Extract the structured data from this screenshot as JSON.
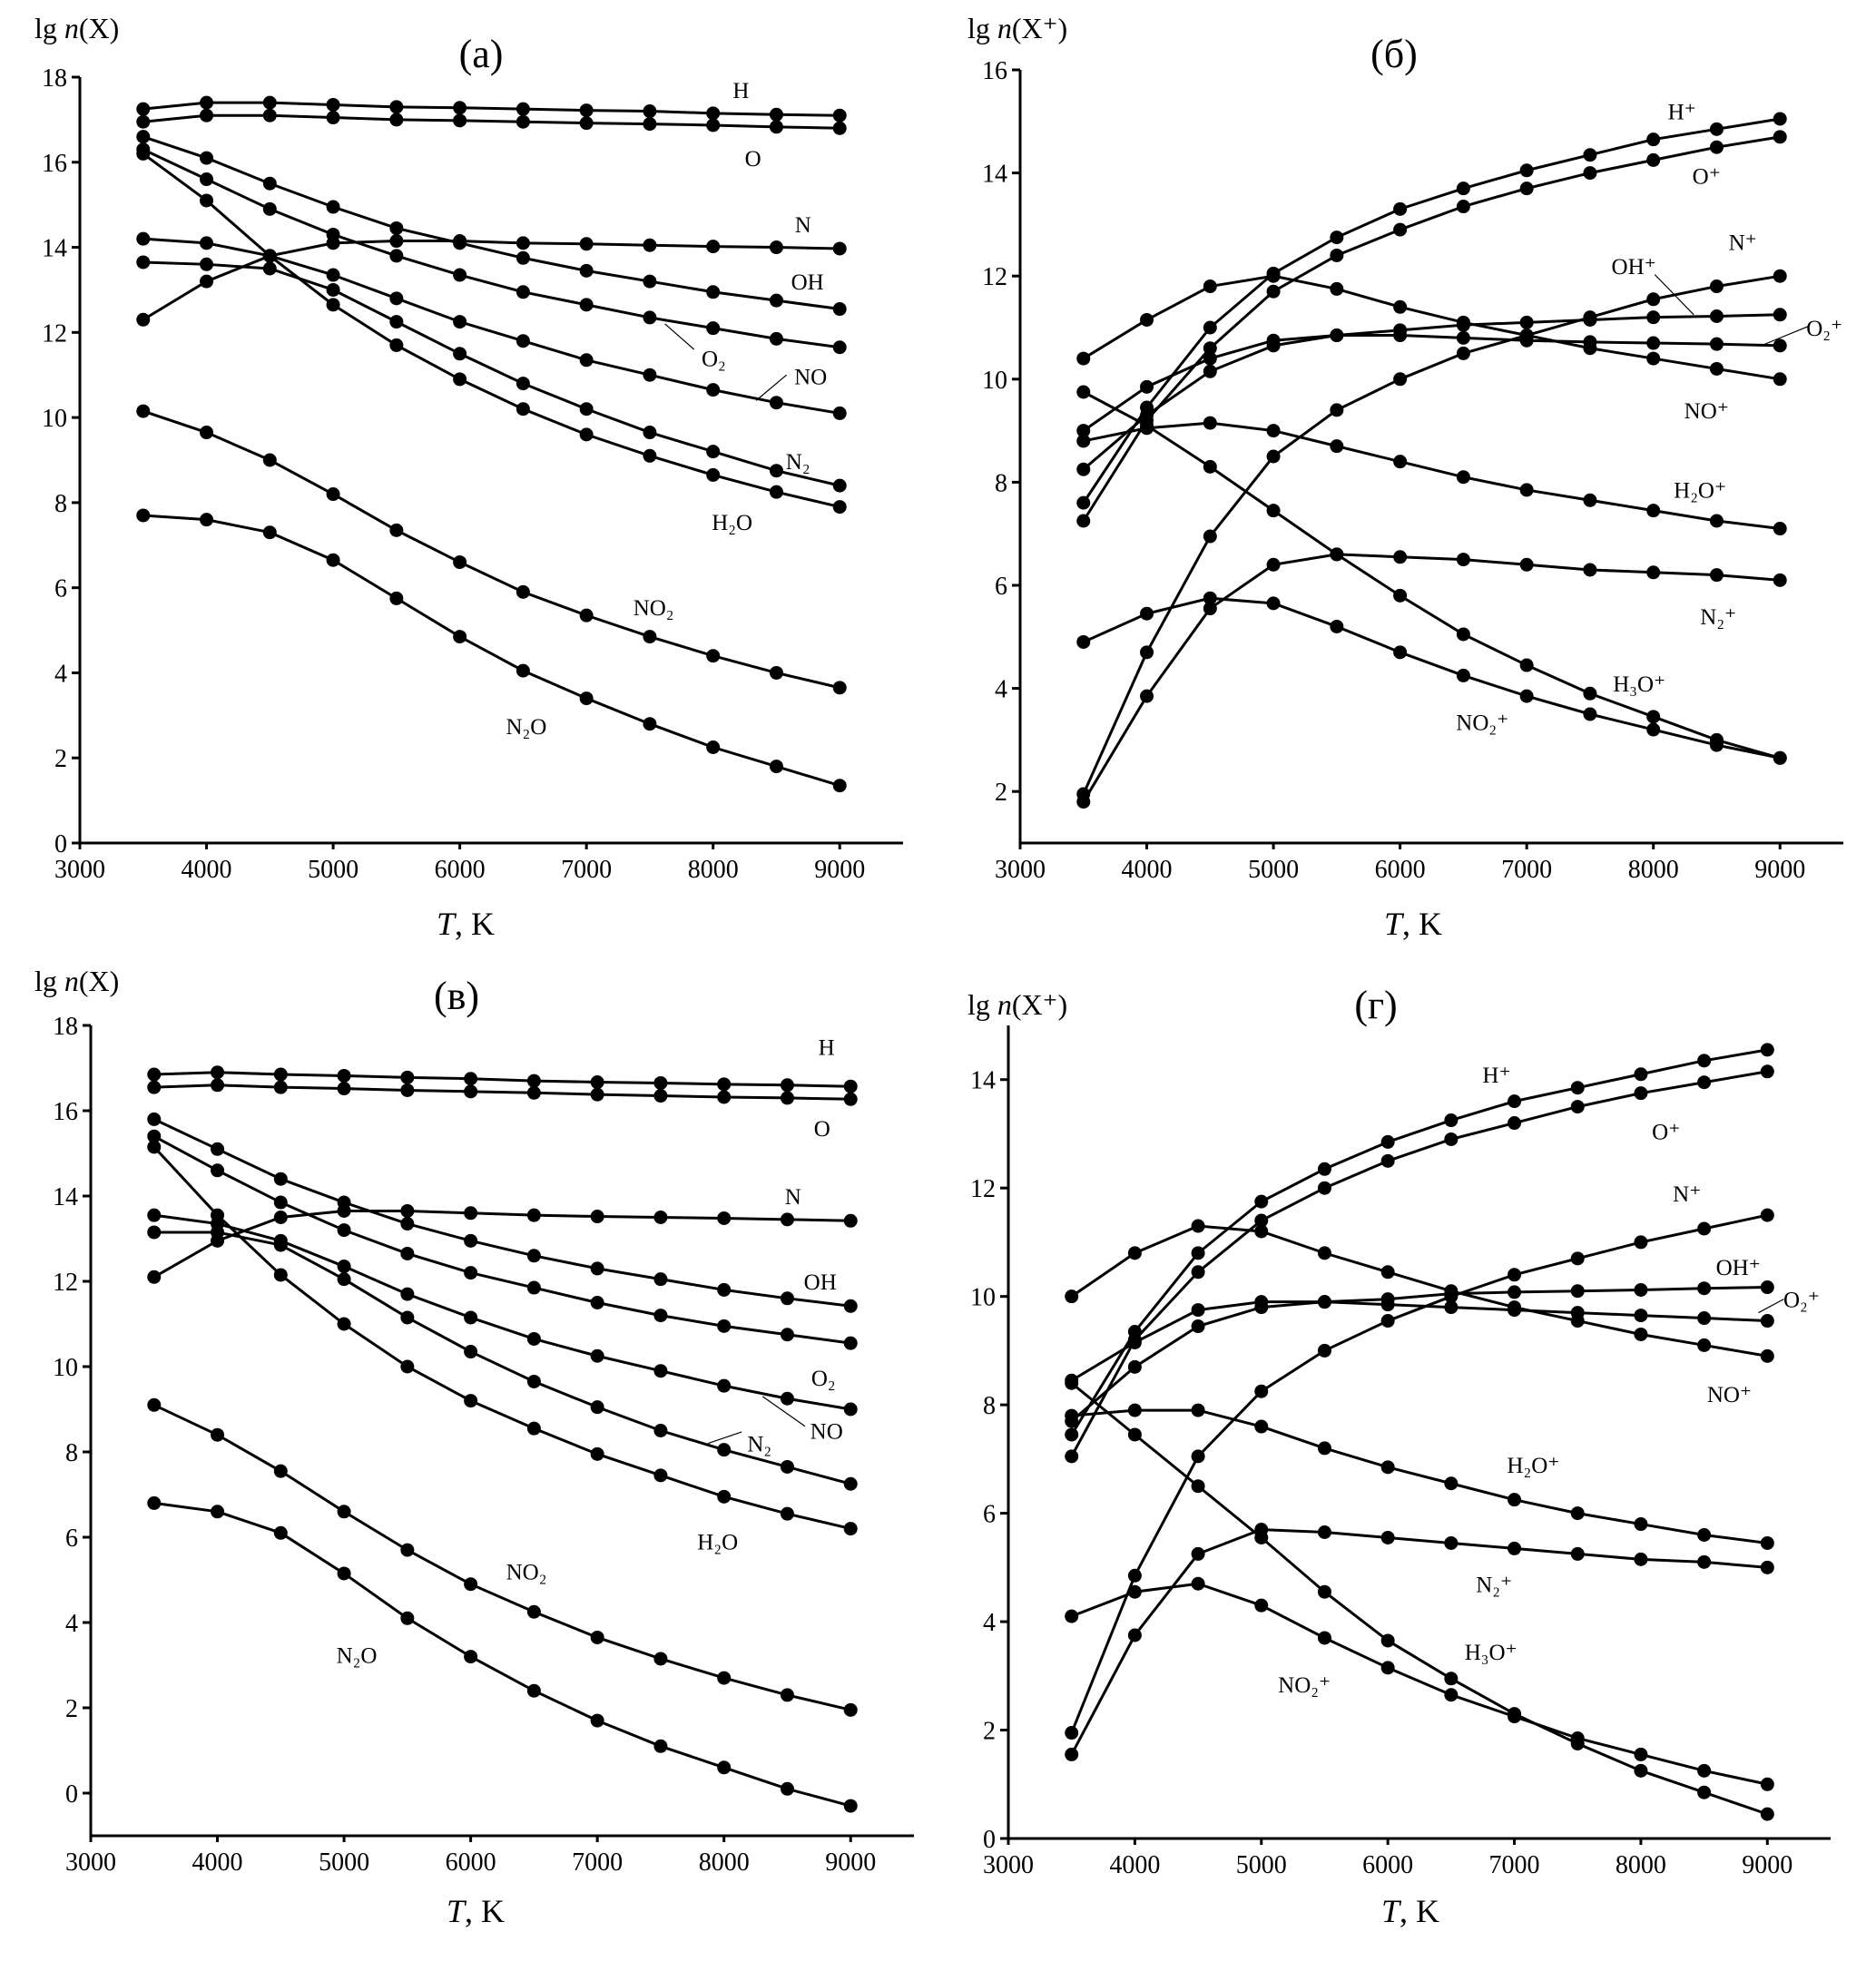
{
  "chart_data": [
    {
      "type": "line",
      "title": "(а)",
      "ylabel": {
        "prefix": "lg ",
        "var": "n",
        "arg": "(X)"
      },
      "xlabel": {
        "var": "T",
        "unit": ", K"
      },
      "xlim": [
        3000,
        9500
      ],
      "ylim": [
        0,
        18
      ],
      "xticks": [
        3000,
        4000,
        5000,
        6000,
        7000,
        8000,
        9000
      ],
      "yticks": [
        0,
        2,
        4,
        6,
        8,
        10,
        12,
        14,
        16,
        18
      ],
      "x": [
        3500,
        4000,
        4500,
        5000,
        5500,
        6000,
        6500,
        7000,
        7500,
        8000,
        8500,
        9000
      ],
      "series": [
        {
          "name": "H",
          "values": [
            17.25,
            17.4,
            17.4,
            17.35,
            17.3,
            17.28,
            17.25,
            17.22,
            17.2,
            17.15,
            17.12,
            17.1
          ]
        },
        {
          "name": "O",
          "values": [
            16.95,
            17.1,
            17.1,
            17.05,
            17.0,
            16.98,
            16.95,
            16.92,
            16.9,
            16.87,
            16.83,
            16.8
          ]
        },
        {
          "name": "N",
          "values": [
            12.3,
            13.2,
            13.8,
            14.1,
            14.15,
            14.15,
            14.1,
            14.08,
            14.05,
            14.02,
            14.0,
            13.97
          ]
        },
        {
          "name": "OH",
          "values": [
            16.6,
            16.1,
            15.5,
            14.95,
            14.45,
            14.1,
            13.75,
            13.45,
            13.2,
            12.95,
            12.75,
            12.55
          ]
        },
        {
          "name": "O₂",
          "values": [
            16.3,
            15.6,
            14.9,
            14.3,
            13.8,
            13.35,
            12.95,
            12.65,
            12.35,
            12.1,
            11.85,
            11.65
          ]
        },
        {
          "name": "NO",
          "values": [
            14.2,
            14.1,
            13.8,
            13.35,
            12.8,
            12.25,
            11.8,
            11.35,
            11.0,
            10.65,
            10.35,
            10.1
          ]
        },
        {
          "name": "N₂",
          "values": [
            13.65,
            13.6,
            13.5,
            13.0,
            12.25,
            11.5,
            10.8,
            10.2,
            9.65,
            9.2,
            8.75,
            8.4
          ]
        },
        {
          "name": "H₂O",
          "values": [
            16.2,
            15.1,
            13.8,
            12.65,
            11.7,
            10.9,
            10.2,
            9.6,
            9.1,
            8.65,
            8.25,
            7.9
          ]
        },
        {
          "name": "NO₂",
          "values": [
            10.15,
            9.65,
            9.0,
            8.2,
            7.35,
            6.6,
            5.9,
            5.35,
            4.85,
            4.4,
            4.0,
            3.65
          ]
        },
        {
          "name": "N₂O",
          "values": [
            7.7,
            7.6,
            7.3,
            6.65,
            5.75,
            4.85,
            4.05,
            3.4,
            2.8,
            2.25,
            1.8,
            1.35
          ]
        }
      ]
    },
    {
      "type": "line",
      "title": "(б)",
      "ylabel": {
        "prefix": "lg ",
        "var": "n",
        "arg": "(X⁺)"
      },
      "xlabel": {
        "var": "T",
        "unit": ", K"
      },
      "xlim": [
        3000,
        9500
      ],
      "ylim": [
        1,
        16
      ],
      "xticks": [
        3000,
        4000,
        5000,
        6000,
        7000,
        8000,
        9000
      ],
      "yticks": [
        2,
        4,
        6,
        8,
        10,
        12,
        14,
        16
      ],
      "x": [
        3500,
        4000,
        4500,
        5000,
        5500,
        6000,
        6500,
        7000,
        7500,
        8000,
        8500,
        9000
      ],
      "series": [
        {
          "name": "H⁺",
          "values": [
            7.6,
            9.45,
            11.0,
            12.05,
            12.75,
            13.3,
            13.7,
            14.05,
            14.35,
            14.65,
            14.85,
            15.05
          ]
        },
        {
          "name": "O⁺",
          "values": [
            7.25,
            9.2,
            10.6,
            11.7,
            12.4,
            12.9,
            13.35,
            13.7,
            14.0,
            14.25,
            14.5,
            14.7
          ]
        },
        {
          "name": "N⁺",
          "values": [
            1.95,
            4.7,
            6.95,
            8.5,
            9.4,
            10.0,
            10.5,
            10.85,
            11.2,
            11.55,
            11.8,
            12.0
          ]
        },
        {
          "name": "OH⁺",
          "values": [
            8.25,
            9.3,
            10.15,
            10.65,
            10.85,
            10.95,
            11.05,
            11.1,
            11.15,
            11.2,
            11.22,
            11.25
          ]
        },
        {
          "name": "O₂⁺",
          "values": [
            9.0,
            9.85,
            10.4,
            10.75,
            10.85,
            10.85,
            10.8,
            10.75,
            10.72,
            10.7,
            10.68,
            10.65
          ]
        },
        {
          "name": "NO⁺",
          "values": [
            10.4,
            11.15,
            11.8,
            12.0,
            11.75,
            11.4,
            11.1,
            10.85,
            10.6,
            10.4,
            10.2,
            10.0
          ]
        },
        {
          "name": "H₂O⁺",
          "values": [
            8.8,
            9.05,
            9.15,
            9.0,
            8.7,
            8.4,
            8.1,
            7.85,
            7.65,
            7.45,
            7.25,
            7.1
          ]
        },
        {
          "name": "N₂⁺",
          "values": [
            1.8,
            3.85,
            5.55,
            6.4,
            6.6,
            6.55,
            6.5,
            6.4,
            6.3,
            6.25,
            6.2,
            6.1
          ]
        },
        {
          "name": "H₃O⁺",
          "values": [
            9.75,
            9.1,
            8.3,
            7.45,
            6.6,
            5.8,
            5.05,
            4.45,
            3.9,
            3.45,
            3.0,
            2.65
          ]
        },
        {
          "name": "NO₂⁺",
          "values": [
            4.9,
            5.45,
            5.75,
            5.65,
            5.2,
            4.7,
            4.25,
            3.85,
            3.5,
            3.2,
            2.9,
            2.65
          ]
        }
      ]
    },
    {
      "type": "line",
      "title": "(в)",
      "ylabel": {
        "prefix": "lg ",
        "var": "n",
        "arg": "(X)"
      },
      "xlabel": {
        "var": "T",
        "unit": ", K"
      },
      "xlim": [
        3000,
        9500
      ],
      "ylim": [
        -1,
        18
      ],
      "xticks": [
        3000,
        4000,
        5000,
        6000,
        7000,
        8000,
        9000
      ],
      "yticks": [
        0,
        2,
        4,
        6,
        8,
        10,
        12,
        14,
        16,
        18
      ],
      "x": [
        3500,
        4000,
        4500,
        5000,
        5500,
        6000,
        6500,
        7000,
        7500,
        8000,
        8500,
        9000
      ],
      "series": [
        {
          "name": "H",
          "values": [
            16.85,
            16.9,
            16.85,
            16.82,
            16.78,
            16.75,
            16.7,
            16.67,
            16.65,
            16.62,
            16.6,
            16.57
          ]
        },
        {
          "name": "O",
          "values": [
            16.55,
            16.6,
            16.55,
            16.52,
            16.48,
            16.45,
            16.42,
            16.38,
            16.35,
            16.32,
            16.3,
            16.27
          ]
        },
        {
          "name": "N",
          "values": [
            12.1,
            12.95,
            13.5,
            13.65,
            13.65,
            13.6,
            13.55,
            13.52,
            13.5,
            13.48,
            13.45,
            13.42
          ]
        },
        {
          "name": "OH",
          "values": [
            15.8,
            15.1,
            14.4,
            13.85,
            13.35,
            12.95,
            12.6,
            12.3,
            12.05,
            11.8,
            11.6,
            11.42
          ]
        },
        {
          "name": "O₂",
          "values": [
            15.4,
            14.6,
            13.85,
            13.2,
            12.65,
            12.2,
            11.85,
            11.5,
            11.2,
            10.95,
            10.75,
            10.55
          ]
        },
        {
          "name": "NO",
          "values": [
            13.55,
            13.35,
            12.95,
            12.35,
            11.7,
            11.15,
            10.65,
            10.25,
            9.9,
            9.55,
            9.25,
            9.0
          ]
        },
        {
          "name": "N₂",
          "values": [
            13.15,
            13.15,
            12.85,
            12.05,
            11.15,
            10.35,
            9.65,
            9.05,
            8.5,
            8.05,
            7.65,
            7.25
          ]
        },
        {
          "name": "H₂O",
          "values": [
            15.15,
            13.55,
            12.15,
            11.0,
            10.0,
            9.2,
            8.55,
            7.95,
            7.45,
            6.95,
            6.55,
            6.2
          ]
        },
        {
          "name": "NO₂",
          "values": [
            9.1,
            8.4,
            7.55,
            6.6,
            5.7,
            4.9,
            4.25,
            3.65,
            3.15,
            2.7,
            2.3,
            1.95
          ]
        },
        {
          "name": "N₂O",
          "values": [
            6.8,
            6.6,
            6.1,
            5.15,
            4.1,
            3.2,
            2.4,
            1.7,
            1.1,
            0.6,
            0.1,
            -0.3
          ]
        }
      ]
    },
    {
      "type": "line",
      "title": "(г)",
      "ylabel": {
        "prefix": "lg ",
        "var": "n",
        "arg": "(X⁺)"
      },
      "xlabel": {
        "var": "T",
        "unit": ", K"
      },
      "xlim": [
        3000,
        9500
      ],
      "ylim": [
        0,
        15
      ],
      "xticks": [
        3000,
        4000,
        5000,
        6000,
        7000,
        8000,
        9000
      ],
      "yticks": [
        0,
        2,
        4,
        6,
        8,
        10,
        12,
        14
      ],
      "x": [
        3500,
        4000,
        4500,
        5000,
        5500,
        6000,
        6500,
        7000,
        7500,
        8000,
        8500,
        9000
      ],
      "series": [
        {
          "name": "H⁺",
          "values": [
            7.45,
            9.35,
            10.8,
            11.75,
            12.35,
            12.85,
            13.25,
            13.6,
            13.85,
            14.1,
            14.35,
            14.55
          ]
        },
        {
          "name": "O⁺",
          "values": [
            7.05,
            9.2,
            10.45,
            11.4,
            12.0,
            12.5,
            12.9,
            13.2,
            13.5,
            13.75,
            13.95,
            14.15
          ]
        },
        {
          "name": "N⁺",
          "values": [
            1.95,
            4.85,
            7.05,
            8.25,
            9.0,
            9.55,
            10.0,
            10.4,
            10.7,
            11.0,
            11.25,
            11.5
          ]
        },
        {
          "name": "OH⁺",
          "values": [
            7.7,
            8.7,
            9.45,
            9.8,
            9.9,
            9.95,
            10.05,
            10.08,
            10.1,
            10.12,
            10.15,
            10.17
          ]
        },
        {
          "name": "O₂⁺",
          "values": [
            8.45,
            9.15,
            9.75,
            9.9,
            9.9,
            9.85,
            9.8,
            9.75,
            9.7,
            9.65,
            9.6,
            9.55
          ]
        },
        {
          "name": "NO⁺",
          "values": [
            10.0,
            10.8,
            11.3,
            11.2,
            10.8,
            10.45,
            10.1,
            9.8,
            9.55,
            9.3,
            9.1,
            8.9
          ]
        },
        {
          "name": "H₂O⁺",
          "values": [
            7.8,
            7.9,
            7.9,
            7.6,
            7.2,
            6.85,
            6.55,
            6.25,
            6.0,
            5.8,
            5.6,
            5.45
          ]
        },
        {
          "name": "N₂⁺",
          "values": [
            1.55,
            3.75,
            5.25,
            5.7,
            5.65,
            5.55,
            5.45,
            5.35,
            5.25,
            5.15,
            5.1,
            5.0
          ]
        },
        {
          "name": "H₃O⁺",
          "values": [
            8.4,
            7.45,
            6.5,
            5.55,
            4.55,
            3.65,
            2.95,
            2.3,
            1.75,
            1.25,
            0.85,
            0.45
          ]
        },
        {
          "name": "NO₂⁺",
          "values": [
            4.1,
            4.55,
            4.7,
            4.3,
            3.7,
            3.15,
            2.65,
            2.25,
            1.85,
            1.55,
            1.25,
            1.0
          ]
        }
      ]
    }
  ]
}
